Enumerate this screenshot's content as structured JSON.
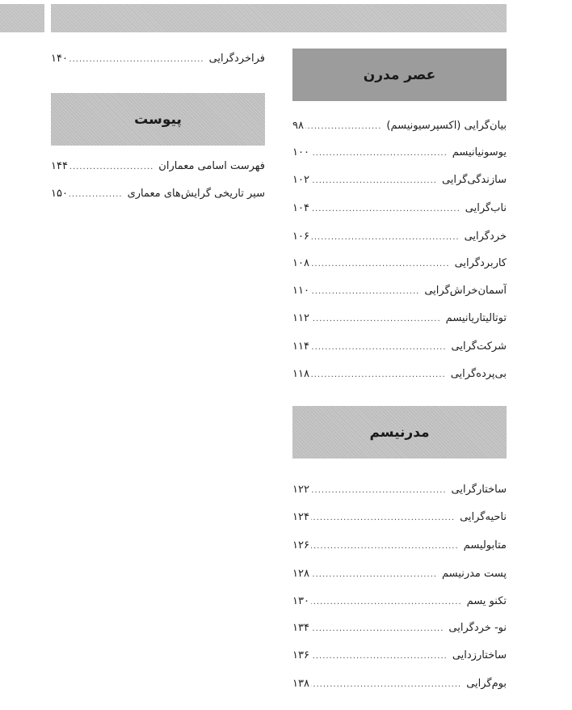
{
  "right_column": {
    "section1": {
      "title": "عصر مدرن",
      "items": [
        {
          "label": "بیان‌گرایی (اکسپرسیونیسم)",
          "page": "۹۸"
        },
        {
          "label": "یوسونیانیسم",
          "page": "۱۰۰"
        },
        {
          "label": "سازندگی‌گرایی",
          "page": "۱۰۲"
        },
        {
          "label": "ناب‌گرایی",
          "page": "۱۰۴"
        },
        {
          "label": "خردگرایی",
          "page": "۱۰۶"
        },
        {
          "label": "کاربردگرایی",
          "page": "۱۰۸"
        },
        {
          "label": "آسمان‌خراش‌گرایی",
          "page": "۱۱۰"
        },
        {
          "label": "توتالیتاریانیسم",
          "page": "۱۱۲"
        },
        {
          "label": "شرکت‌گرایی",
          "page": "۱۱۴"
        },
        {
          "label": "بی‌پرده‌گرایی",
          "page": "۱۱۸"
        }
      ]
    },
    "section2": {
      "title": "مدرنیسم",
      "items": [
        {
          "label": "ساختارگرایی",
          "page": "۱۲۲"
        },
        {
          "label": "ناحیه‌گرایی",
          "page": "۱۲۴"
        },
        {
          "label": "متابولیسم",
          "page": "۱۲۶"
        },
        {
          "label": "پست مدرنیسم",
          "page": "۱۲۸"
        },
        {
          "label": "تکنو یسم",
          "page": "۱۳۰"
        },
        {
          "label": "نو- خردگرایی",
          "page": "۱۳۴"
        },
        {
          "label": "ساختارزدایی",
          "page": "۱۳۶"
        },
        {
          "label": "بوم‌گرایی",
          "page": "۱۳۸"
        }
      ]
    }
  },
  "left_column": {
    "top_item": {
      "label": "فراخردگرایی",
      "page": "۱۴۰"
    },
    "section": {
      "title": "پیوست",
      "items": [
        {
          "label": "فهرست اسامی معماران",
          "page": "۱۴۴"
        },
        {
          "label": "سیر تاریخی گرایش‌های معماری",
          "page": "۱۵۰"
        }
      ]
    }
  }
}
